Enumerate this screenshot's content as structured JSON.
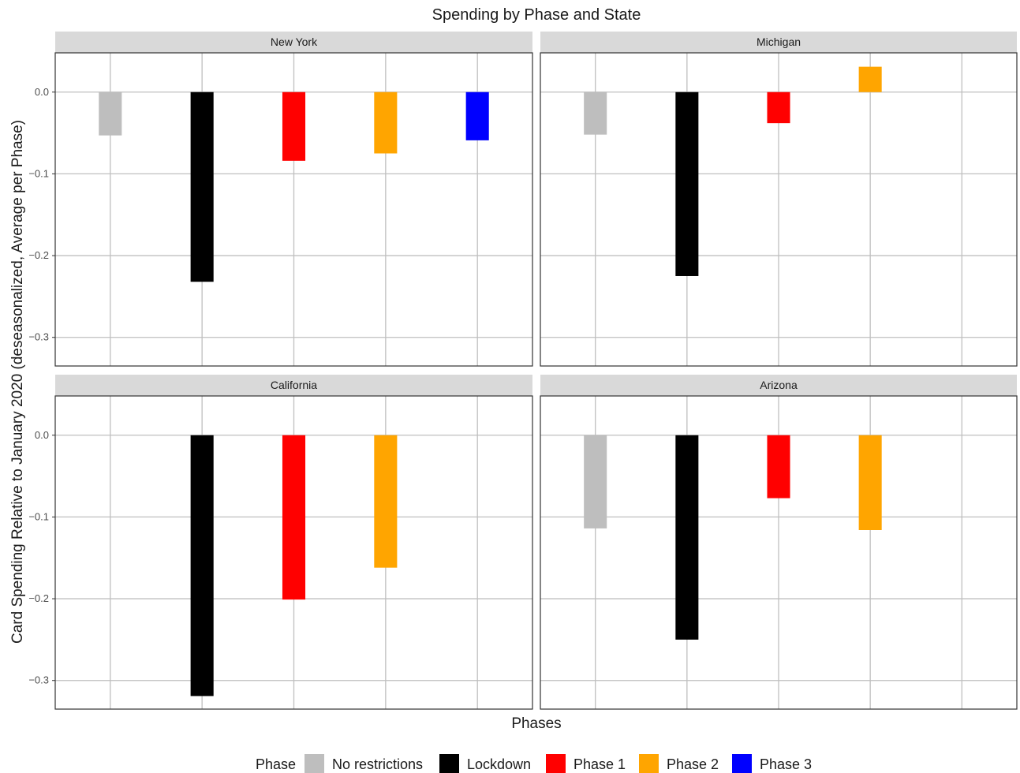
{
  "chart_data": {
    "type": "bar",
    "title": "Spending by Phase and State",
    "xlabel": "Phases",
    "ylabel": "Card Spending Relative to January 2020 (deseasonalized, Average per Phase)",
    "ylim": [
      -0.335,
      0.048
    ],
    "y_ticks": [
      0.0,
      -0.1,
      -0.2,
      -0.3
    ],
    "y_tick_labels": [
      "0.0",
      "−0.1",
      "−0.2",
      "−0.3"
    ],
    "grid": true,
    "categories": [
      "No restrictions",
      "Lockdown",
      "Phase 1",
      "Phase 2",
      "Phase 3"
    ],
    "colors": {
      "No restrictions": "#bebebe",
      "Lockdown": "#000000",
      "Phase 1": "#ff0000",
      "Phase 2": "#ffa500",
      "Phase 3": "#0000ff"
    },
    "legend": {
      "title": "Phase",
      "position": "bottom",
      "entries": [
        "No restrictions",
        "Lockdown",
        "Phase 1",
        "Phase 2",
        "Phase 3"
      ]
    },
    "panels": [
      {
        "name": "New York",
        "values": [
          -0.053,
          -0.232,
          -0.084,
          -0.075,
          -0.059
        ]
      },
      {
        "name": "Michigan",
        "values": [
          -0.052,
          -0.225,
          -0.038,
          0.031,
          null
        ]
      },
      {
        "name": "California",
        "values": [
          null,
          -0.319,
          -0.201,
          -0.162,
          null
        ]
      },
      {
        "name": "Arizona",
        "values": [
          -0.114,
          -0.25,
          -0.077,
          -0.116,
          null
        ]
      }
    ]
  }
}
